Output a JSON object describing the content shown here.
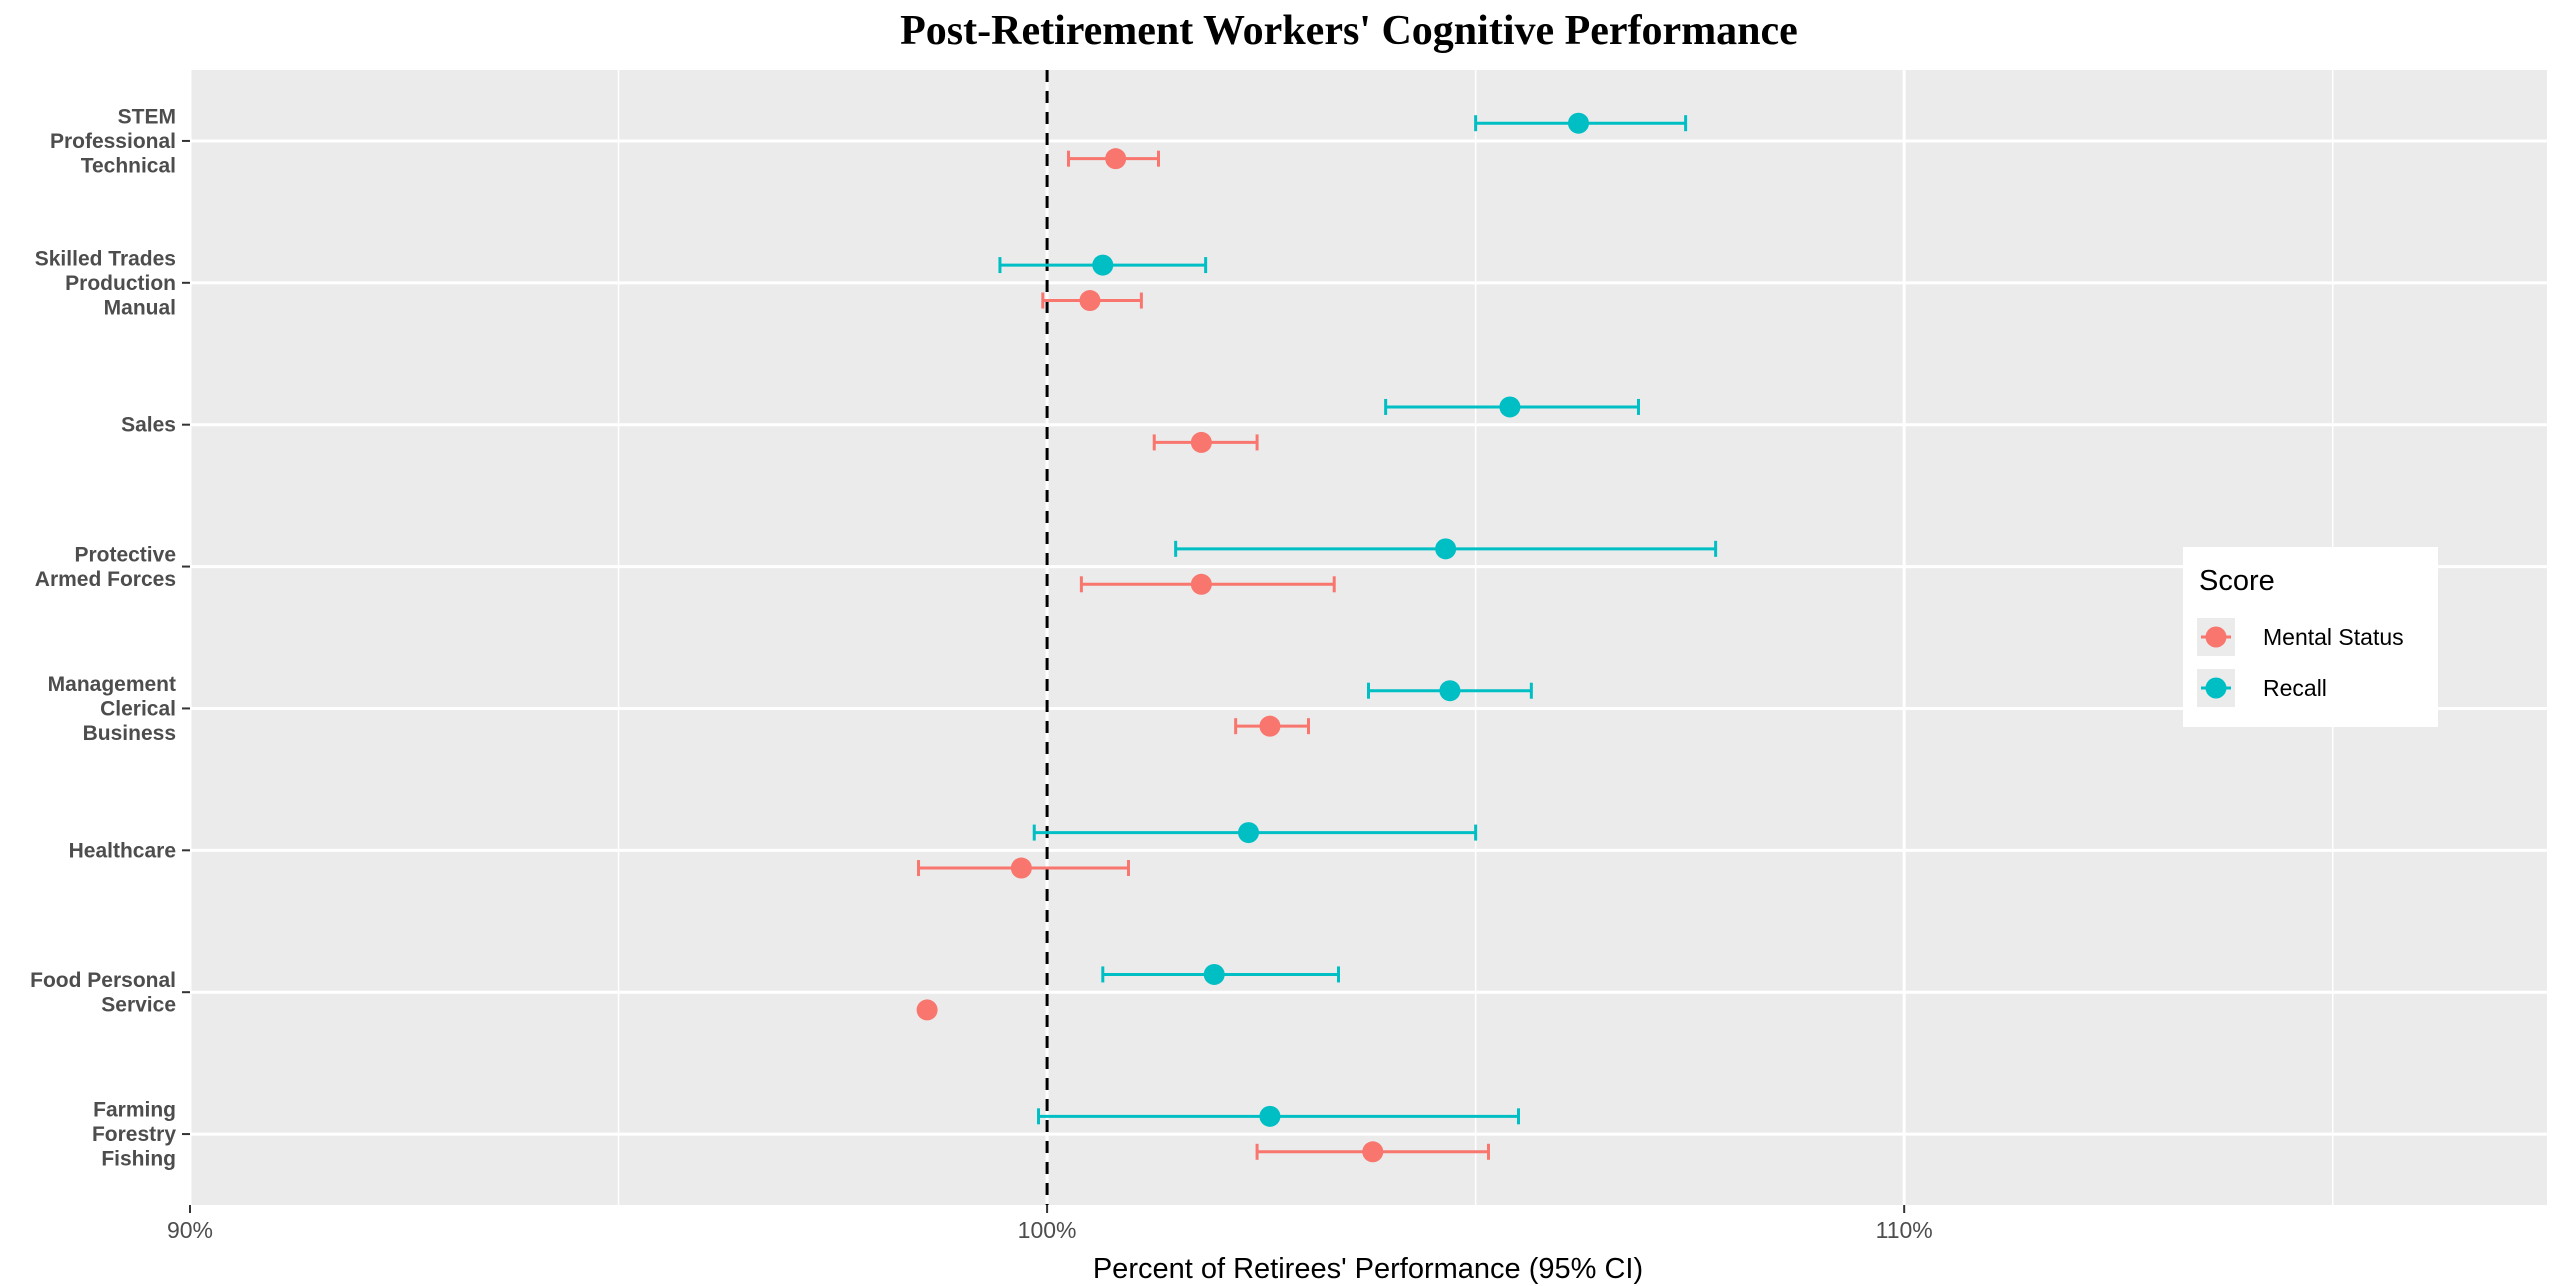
{
  "chart_data": {
    "type": "scatter",
    "title": "Post-Retirement Workers' Cognitive Performance",
    "xlabel": "Percent of Retirees' Performance (95% CI)",
    "ylabel": "",
    "xlim": [
      90,
      117.5
    ],
    "x_ticks": [
      90,
      100,
      110
    ],
    "x_tick_labels": [
      "90%",
      "100%",
      "110%"
    ],
    "reference_line": {
      "x": 100,
      "style": "dashed",
      "color": "#000000"
    },
    "categories": [
      [
        "STEM",
        "Professional",
        "Technical"
      ],
      [
        "Skilled Trades",
        "Production",
        "Manual"
      ],
      [
        "Sales"
      ],
      [
        "Protective",
        "Armed Forces"
      ],
      [
        "Management",
        "Clerical",
        "Business"
      ],
      [
        "Healthcare"
      ],
      [
        "Food Personal",
        "Service"
      ],
      [
        "Farming",
        "Forestry",
        "Fishing"
      ]
    ],
    "series": [
      {
        "name": "Mental Status",
        "color": "#F8766D",
        "values": [
          100.8,
          100.5,
          101.8,
          101.8,
          102.6,
          99.7,
          98.6,
          103.8
        ],
        "ci_low": [
          100.25,
          99.95,
          101.25,
          100.4,
          102.2,
          98.5,
          null,
          102.45
        ],
        "ci_high": [
          101.3,
          101.1,
          102.45,
          103.35,
          103.05,
          100.95,
          null,
          105.15
        ]
      },
      {
        "name": "Recall",
        "color": "#00BFC4",
        "values": [
          106.2,
          100.65,
          105.4,
          104.65,
          104.7,
          102.35,
          101.95,
          102.6
        ],
        "ci_low": [
          105.0,
          99.45,
          103.95,
          101.5,
          103.75,
          99.85,
          100.65,
          99.9
        ],
        "ci_high": [
          107.45,
          101.85,
          106.9,
          107.8,
          105.65,
          105.0,
          103.4,
          105.5
        ]
      }
    ],
    "legend": {
      "title": "Score",
      "position": "right",
      "background": "#ffffff"
    },
    "panel_background": "#EBEBEB",
    "grid": true
  }
}
